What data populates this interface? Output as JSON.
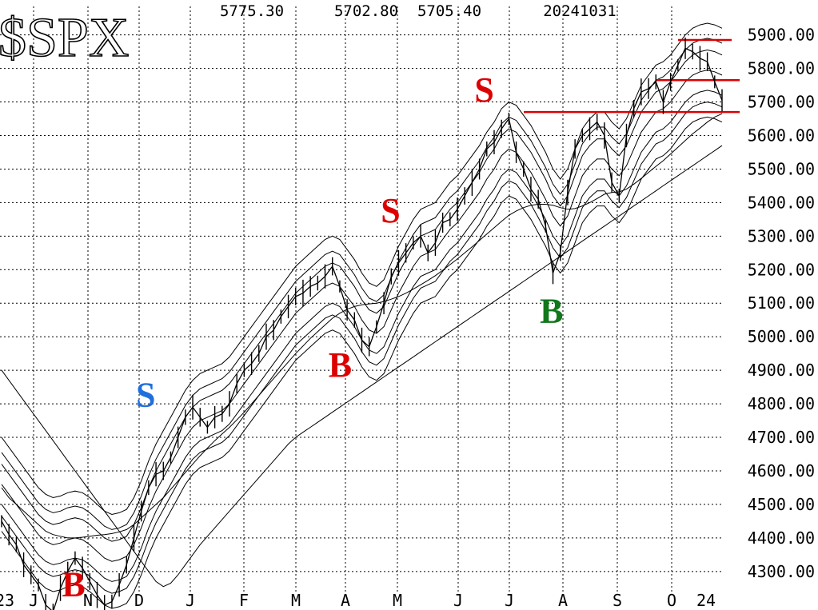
{
  "chart_data": {
    "type": "line",
    "title": "$SPX",
    "header": [
      "5775.30",
      "5702.80",
      "5705.40",
      "20241031"
    ],
    "x_labels": [
      "23",
      "J",
      "N",
      "D",
      "J",
      "F",
      "M",
      "A",
      "M",
      "J",
      "J",
      "A",
      "S",
      "O",
      "24"
    ],
    "y_ticks": [
      "5900.00",
      "5800.00",
      "5700.00",
      "5600.00",
      "5500.00",
      "5400.00",
      "5300.00",
      "5200.00",
      "5100.00",
      "5000.00",
      "4900.00",
      "4800.00",
      "4700.00",
      "4600.00",
      "4500.00",
      "4400.00",
      "4300.00"
    ],
    "ylim": [
      4240,
      5985
    ],
    "grid": true,
    "series": [
      {
        "values": [
          4450,
          4410,
          4380,
          4320,
          4290,
          4260,
          4200,
          4180,
          4250,
          4300,
          4340,
          4310,
          4270,
          4230,
          4200,
          4210,
          4260,
          4320,
          4400,
          4480,
          4550,
          4590,
          4600,
          4640,
          4700,
          4760,
          4790,
          4760,
          4730,
          4760,
          4770,
          4800,
          4860,
          4900,
          4920,
          4950,
          5000,
          5020,
          5060,
          5090,
          5120,
          5130,
          5150,
          5160,
          5180,
          5210,
          5150,
          5080,
          5050,
          4990,
          4970,
          5030,
          5100,
          5180,
          5220,
          5250,
          5280,
          5300,
          5250,
          5280,
          5340,
          5350,
          5380,
          5420,
          5460,
          5500,
          5560,
          5580,
          5620,
          5650,
          5550,
          5500,
          5440,
          5410,
          5330,
          5190,
          5250,
          5430,
          5560,
          5600,
          5620,
          5640,
          5600,
          5460,
          5420,
          5600,
          5680,
          5730,
          5740,
          5760,
          5700,
          5760,
          5810,
          5860,
          5850,
          5830,
          5820,
          5760,
          5705
        ]
      },
      {
        "values": [
          4560,
          4530,
          4500,
          4470,
          4440,
          4410,
          4390,
          4380,
          4385,
          4395,
          4400,
          4395,
          4380,
          4360,
          4340,
          4330,
          4335,
          4345,
          4380,
          4430,
          4490,
          4540,
          4580,
          4620,
          4660,
          4700,
          4730,
          4750,
          4760,
          4770,
          4780,
          4800,
          4830,
          4860,
          4890,
          4920,
          4950,
          4980,
          5010,
          5040,
          5070,
          5090,
          5110,
          5130,
          5150,
          5160,
          5150,
          5120,
          5090,
          5050,
          5020,
          5010,
          5030,
          5080,
          5130,
          5170,
          5210,
          5240,
          5250,
          5260,
          5290,
          5320,
          5340,
          5370,
          5400,
          5430,
          5470,
          5500,
          5540,
          5560,
          5550,
          5520,
          5490,
          5450,
          5410,
          5360,
          5330,
          5360,
          5420,
          5480,
          5510,
          5530,
          5530,
          5500,
          5480,
          5510,
          5560,
          5610,
          5640,
          5670,
          5680,
          5700,
          5730,
          5760,
          5780,
          5790,
          5795,
          5790,
          5780
        ]
      },
      {
        "values": [
          4550,
          4520,
          4500,
          4480,
          4460,
          4440,
          4420,
          4410,
          4405,
          4400,
          4400,
          4402,
          4405,
          4408,
          4410,
          4413,
          4418,
          4425,
          4440,
          4460,
          4480,
          4500,
          4520,
          4545,
          4570,
          4595,
          4620,
          4645,
          4668,
          4690,
          4710,
          4730,
          4752,
          4775,
          4800,
          4825,
          4850,
          4875,
          4900,
          4925,
          4950,
          4972,
          4995,
          5015,
          5035,
          5055,
          5070,
          5082,
          5090,
          5095,
          5098,
          5100,
          5105,
          5112,
          5120,
          5130,
          5142,
          5155,
          5168,
          5182,
          5198,
          5215,
          5232,
          5250,
          5268,
          5287,
          5306,
          5325,
          5344,
          5362,
          5375,
          5385,
          5392,
          5395,
          5395,
          5392,
          5385,
          5380,
          5382,
          5390,
          5400,
          5412,
          5425,
          5430,
          5432,
          5440,
          5455,
          5472,
          5490,
          5508,
          5525,
          5545,
          5565,
          5585,
          5605,
          5622,
          5640,
          5655,
          5665
        ]
      },
      {
        "values": [
          4900,
          4870,
          4840,
          4810,
          4780,
          4750,
          4720,
          4690,
          4660,
          4630,
          4600,
          4570,
          4540,
          4510,
          4480,
          4450,
          4420,
          4390,
          4360,
          4330,
          4300,
          4270,
          4255,
          4265,
          4290,
          4320,
          4350,
          4380,
          4405,
          4430,
          4455,
          4480,
          4505,
          4530,
          4555,
          4580,
          4605,
          4630,
          4655,
          4680,
          4700,
          4715,
          4730,
          4745,
          4760,
          4775,
          4790,
          4805,
          4820,
          4835,
          4850,
          4865,
          4880,
          4895,
          4910,
          4925,
          4940,
          4955,
          4970,
          4985,
          5000,
          5015,
          5030,
          5045,
          5060,
          5075,
          5090,
          5105,
          5120,
          5135,
          5150,
          5165,
          5180,
          5195,
          5210,
          5225,
          5240,
          5255,
          5270,
          5285,
          5300,
          5315,
          5330,
          5345,
          5360,
          5375,
          5390,
          5405,
          5420,
          5435,
          5450,
          5465,
          5480,
          5495,
          5510,
          5525,
          5540,
          5555,
          5570
        ]
      }
    ],
    "horizontal_lines": [
      5885,
      5765,
      5670
    ],
    "annotations": [
      {
        "text": "S",
        "color": "#1f6fdc",
        "x": 20,
        "y": 4830
      },
      {
        "text": "B",
        "color": "#dd0000",
        "x": 10,
        "y": 4265
      },
      {
        "text": "B",
        "color": "#dd0000",
        "x": 47,
        "y": 4920
      },
      {
        "text": "S",
        "color": "#dd0000",
        "x": 54,
        "y": 5380
      },
      {
        "text": "S",
        "color": "#dd0000",
        "x": 67,
        "y": 5740
      },
      {
        "text": "B",
        "color": "#11771b",
        "x": 75,
        "y": 5080
      }
    ]
  }
}
